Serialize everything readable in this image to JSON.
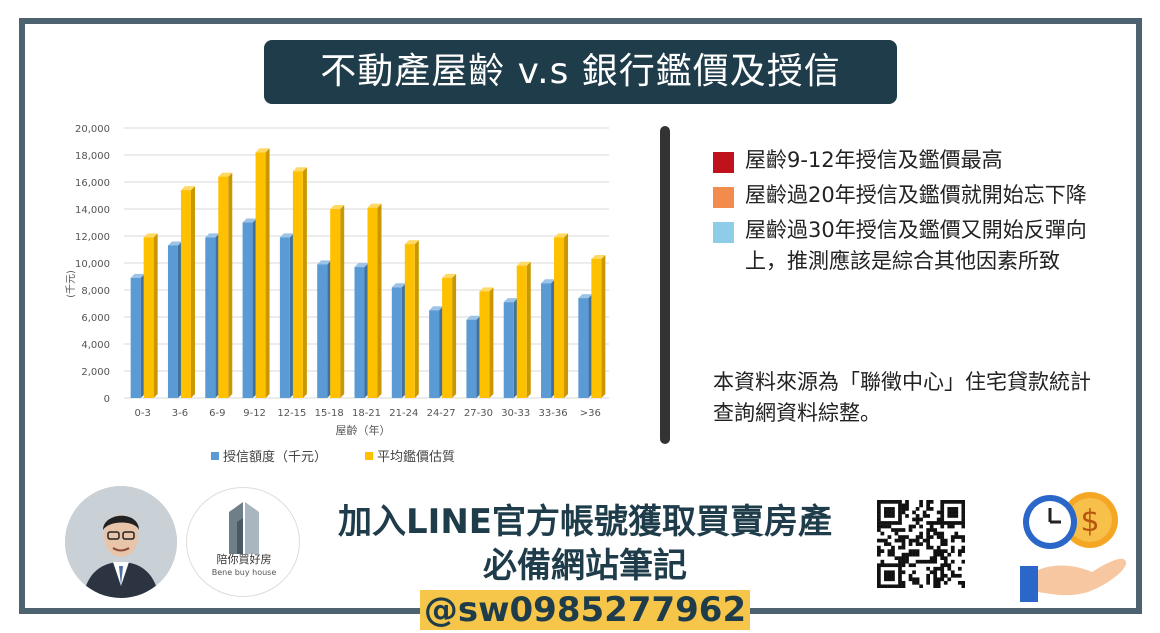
{
  "title": "不動產屋齡 v.s 銀行鑑價及授信",
  "chart_data": {
    "type": "bar",
    "categories": [
      "0-3",
      "3-6",
      "6-9",
      "9-12",
      "12-15",
      "15-18",
      "18-21",
      "21-24",
      "24-27",
      "27-30",
      "30-33",
      "33-36",
      ">36"
    ],
    "series": [
      {
        "name": "授信額度（千元）",
        "color": "#5b9bd5",
        "values": [
          8900,
          11300,
          11900,
          13000,
          11900,
          9900,
          9700,
          8200,
          6500,
          5800,
          7100,
          8500,
          7400
        ]
      },
      {
        "name": "平均鑑價估質",
        "color": "#ffc000",
        "values": [
          11900,
          15400,
          16400,
          18200,
          16800,
          14000,
          14100,
          11400,
          8900,
          7900,
          9800,
          11900,
          10300
        ]
      }
    ],
    "ylim": [
      0,
      20000
    ],
    "yticks": [
      "0",
      "2,000",
      "4,000",
      "6,000",
      "8,000",
      "10,000",
      "12,000",
      "14,000",
      "16,000",
      "18,000",
      "20,000"
    ],
    "xlabel": "屋齡（年）",
    "ylabel": "(千元)",
    "grid": true,
    "legend": "bottom"
  },
  "bullets": [
    {
      "color": "#c0121c",
      "text": "屋齡9-12年授信及鑑價最高"
    },
    {
      "color": "#f28c4c",
      "text": "屋齡過20年授信及鑑價就開始忘下降"
    },
    {
      "color": "#8ecde8",
      "text": "屋齡過30年授信及鑑價又開始反彈向上，推測應該是綜合其他因素所致"
    }
  ],
  "source_text": "本資料來源為「聯徵中心」住宅貸款統計查詢網資料綜整。",
  "footer": {
    "logo_cn": "陪你買好房",
    "logo_en": "Bene buy house",
    "cta_line1": "加入LINE官方帳號獲取買賣房產",
    "cta_line2_prefix": "必備網站筆記",
    "cta_handle": "@sw0985277962"
  },
  "icons": [
    "person-avatar-icon",
    "building-logo-icon",
    "qr-code-icon",
    "clock-icon",
    "dollar-coin-icon",
    "hand-icon"
  ]
}
